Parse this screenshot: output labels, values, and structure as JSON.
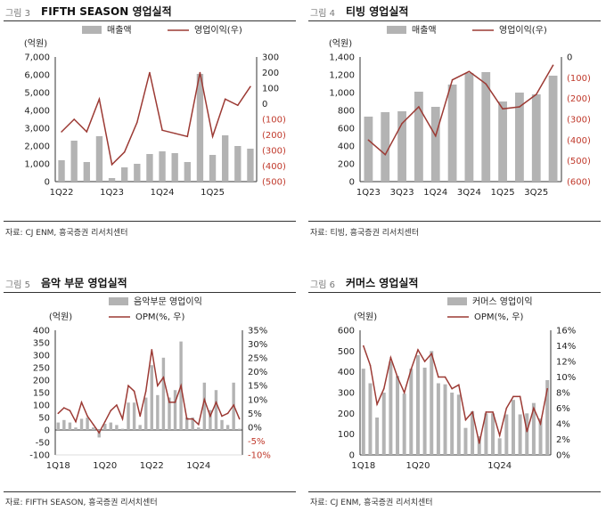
{
  "panels": [
    {
      "fig_no": "그림 3",
      "title": "FIFTH SEASON 영업실적",
      "source": "자료: CJ ENM, 흥국증권 리서치센터",
      "chart_data": {
        "type": "bar+line",
        "left_unit": "(억원)",
        "y_left_ticks": [
          "0",
          "1,000",
          "2,000",
          "3,000",
          "4,000",
          "5,000",
          "6,000",
          "7,000"
        ],
        "ylim_left": [
          0,
          7000
        ],
        "y_right_ticks": [
          "(500)",
          "(400)",
          "(300)",
          "(200)",
          "(100)",
          "0",
          "100",
          "200",
          "300"
        ],
        "ylim_right": [
          -500,
          300
        ],
        "x_tick_labels": [
          "1Q22",
          "",
          "",
          "",
          "1Q23",
          "",
          "",
          "",
          "1Q24",
          "",
          "",
          "",
          "1Q25",
          "",
          "",
          ""
        ],
        "legend": [
          "매출액",
          "영업이익(우)"
        ],
        "series": [
          {
            "name": "매출액",
            "axis": "left",
            "type": "bar",
            "values": [
              1200,
              2300,
              1100,
              2550,
              200,
              800,
              1000,
              1550,
              1700,
              1600,
              1100,
              6050,
              1500,
              2600,
              2000,
              1850
            ]
          },
          {
            "name": "영업이익(우)",
            "axis": "right",
            "type": "line",
            "values": [
              -180,
              -100,
              -180,
              30,
              -390,
              -310,
              -120,
              200,
              -170,
              -190,
              -210,
              200,
              -210,
              30,
              -10,
              110
            ]
          }
        ]
      }
    },
    {
      "fig_no": "그림 4",
      "title": "티빙 영업실적",
      "source": "자료: 티빙, 흥국증권 리서치센터",
      "chart_data": {
        "type": "bar+line",
        "left_unit": "(억원)",
        "y_left_ticks": [
          "0",
          "200",
          "400",
          "600",
          "800",
          "1,000",
          "1,200",
          "1,400"
        ],
        "ylim_left": [
          0,
          1400
        ],
        "y_right_ticks": [
          "(600)",
          "(500)",
          "(400)",
          "(300)",
          "(200)",
          "(100)",
          "0"
        ],
        "ylim_right": [
          -600,
          0
        ],
        "x_tick_labels": [
          "1Q23",
          "",
          "3Q23",
          "",
          "1Q24",
          "",
          "3Q24",
          "",
          "1Q25",
          "",
          "3Q25",
          ""
        ],
        "legend": [
          "매출액",
          "영업이익(우)"
        ],
        "series": [
          {
            "name": "매출액",
            "axis": "left",
            "type": "bar",
            "values": [
              730,
              780,
              790,
              1010,
              840,
              1090,
              1220,
              1230,
              900,
              1000,
              980,
              1190
            ]
          },
          {
            "name": "영업이익(우)",
            "axis": "right",
            "type": "line",
            "values": [
              -400,
              -470,
              -320,
              -240,
              -380,
              -110,
              -70,
              -130,
              -250,
              -240,
              -180,
              -40
            ]
          }
        ]
      }
    },
    {
      "fig_no": "그림 5",
      "title": "음악 부문 영업실적",
      "source": "자료: FIFTH SEASON, 흥국증권 리서치센터",
      "chart_data": {
        "type": "bar+line",
        "left_unit": "(억원)",
        "y_left_ticks": [
          "-100",
          "-50",
          "0",
          "50",
          "100",
          "150",
          "200",
          "250",
          "300",
          "350",
          "400"
        ],
        "ylim_left": [
          -100,
          400
        ],
        "y_right_ticks": [
          "-10%",
          "-5%",
          "0%",
          "5%",
          "10%",
          "15%",
          "20%",
          "25%",
          "30%",
          "35%"
        ],
        "ylim_right": [
          -10,
          35
        ],
        "x_tick_labels": [
          "1Q18",
          "",
          "",
          "",
          "",
          "",
          "",
          "",
          "1Q20",
          "",
          "",
          "",
          "",
          "",
          "",
          "",
          "1Q22",
          "",
          "",
          "",
          "",
          "",
          "",
          "",
          "1Q24",
          "",
          "",
          "",
          "",
          "",
          "",
          ""
        ],
        "legend": [
          "음악부문 영업이익",
          "OPM(%, 우)"
        ],
        "series": [
          {
            "name": "음악부문 영업이익",
            "axis": "left",
            "type": "bar",
            "values": [
              30,
              40,
              30,
              10,
              45,
              50,
              10,
              -30,
              25,
              30,
              20,
              5,
              110,
              110,
              20,
              130,
              260,
              140,
              290,
              130,
              160,
              355,
              50,
              50,
              10,
              190,
              80,
              160,
              40,
              20,
              190,
              5
            ]
          },
          {
            "name": "OPM(%, 우)",
            "axis": "right",
            "type": "line",
            "values": [
              5,
              7,
              6,
              2,
              9,
              4,
              1,
              -2,
              2,
              6,
              8,
              3,
              15,
              13,
              4,
              13,
              28,
              15,
              18,
              9,
              9,
              15,
              3,
              3,
              1,
              10,
              4,
              9,
              4,
              5,
              8,
              3
            ]
          }
        ]
      }
    },
    {
      "fig_no": "그림 6",
      "title": "커머스 영업실적",
      "source": "자료: CJ ENM, 흥국증권 리서치센터",
      "chart_data": {
        "type": "bar+line",
        "left_unit": "(억원)",
        "y_left_ticks": [
          "0",
          "100",
          "200",
          "300",
          "400",
          "500",
          "600"
        ],
        "ylim_left": [
          0,
          600
        ],
        "y_right_ticks": [
          "0%",
          "2%",
          "4%",
          "6%",
          "8%",
          "10%",
          "12%",
          "14%",
          "16%"
        ],
        "ylim_right": [
          0,
          16
        ],
        "x_tick_labels": [
          "1Q18",
          "",
          "",
          "",
          "",
          "",
          "",
          "",
          "1Q20",
          "",
          "",
          "",
          "",
          "",
          "",
          "",
          "",
          "",
          "",
          "",
          "1Q24",
          "",
          "",
          "",
          "",
          "",
          "",
          ""
        ],
        "legend": [
          "커머스 영업이익",
          "OPM(%, 우)"
        ],
        "series": [
          {
            "name": "커머스 영업이익",
            "axis": "left",
            "type": "bar",
            "values": [
              415,
              345,
              180,
              300,
              450,
              380,
              295,
              415,
              480,
              420,
              500,
              345,
              340,
              300,
              290,
              130,
              210,
              90,
              200,
              200,
              80,
              195,
              265,
              195,
              200,
              250,
              175,
              360
            ]
          },
          {
            "name": "OPM(%, 우)",
            "axis": "right",
            "type": "line",
            "values": [
              14,
              11.5,
              6.5,
              8.5,
              12.5,
              10,
              8,
              11,
              13.5,
              12,
              13,
              10,
              10,
              8.5,
              9,
              4.5,
              5.5,
              1.5,
              5.5,
              5.5,
              2.5,
              6,
              7.5,
              7.5,
              3,
              6,
              4,
              8.5
            ]
          }
        ]
      }
    }
  ],
  "style": {
    "bar_color": "#b3b3b3",
    "line_color": "#9c3a34",
    "negative_color": "#c0392b",
    "axis_color": "#333333"
  }
}
